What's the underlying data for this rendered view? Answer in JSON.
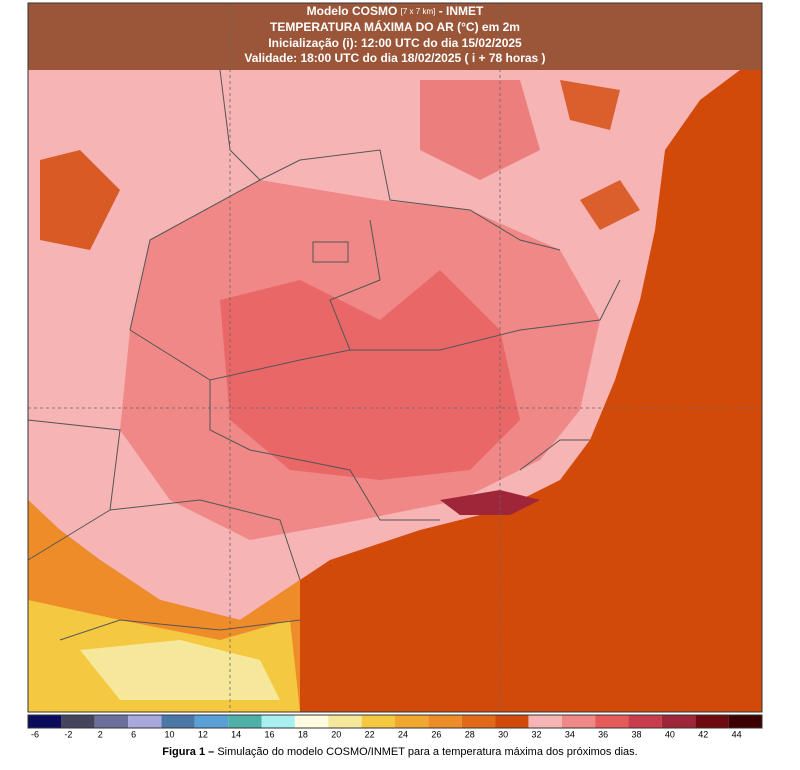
{
  "header": {
    "model": "Modelo COSMO",
    "resolution": "[7 x 7 km]",
    "agency": "- INMET",
    "title": "TEMPERATURA MÁXIMA DO AR (°C) em 2m",
    "init": "Inicialização (i): 12:00 UTC do dia 15/02/2025",
    "validity": "Validade: 18:00 UTC do dia 18/02/2025 ( i + 78 horas )"
  },
  "colorbar": [
    {
      "label": "-6",
      "color": "#0b0b5e"
    },
    {
      "label": "-2",
      "color": "#44445c"
    },
    {
      "label": "2",
      "color": "#6b6f9c"
    },
    {
      "label": "6",
      "color": "#a8a8dc"
    },
    {
      "label": "10",
      "color": "#4c78a8"
    },
    {
      "label": "12",
      "color": "#5aa0d8"
    },
    {
      "label": "14",
      "color": "#4fb0a8"
    },
    {
      "label": "16",
      "color": "#a8f0f0"
    },
    {
      "label": "18",
      "color": "#fffbe0"
    },
    {
      "label": "20",
      "color": "#f6e89a"
    },
    {
      "label": "22",
      "color": "#f5c842"
    },
    {
      "label": "24",
      "color": "#f0a830"
    },
    {
      "label": "26",
      "color": "#ee8c2a"
    },
    {
      "label": "28",
      "color": "#e06a18"
    },
    {
      "label": "30",
      "color": "#d24a0a"
    },
    {
      "label": "32",
      "color": "#f7b4b4"
    },
    {
      "label": "34",
      "color": "#f08888"
    },
    {
      "label": "36",
      "color": "#e65a5a"
    },
    {
      "label": "38",
      "color": "#c83c4c"
    },
    {
      "label": "40",
      "color": "#9e2638"
    },
    {
      "label": "42",
      "color": "#6e0a10"
    },
    {
      "label": "44",
      "color": "#3c0000"
    }
  ],
  "caption": {
    "lead": "Figura 1 –",
    "text": "Simulação do modelo COSMO/INMET para a temperatura máxima dos próximos dias."
  }
}
